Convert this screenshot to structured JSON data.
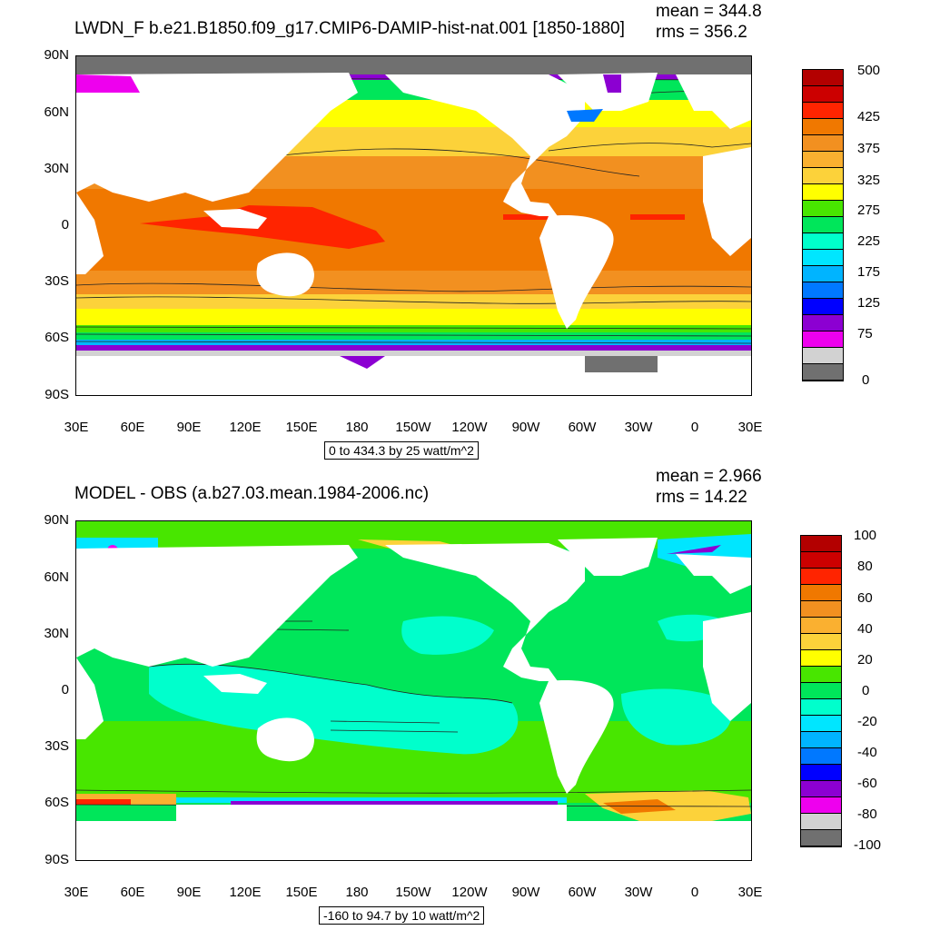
{
  "panels": [
    {
      "title": "LWDN_F b.e21.B1850.f09_g17.CMIP6-DAMIP-hist-nat.001 [1850-1880]",
      "mean_label": "mean = 344.8",
      "rms_label": "rms = 356.2",
      "range_label": "0 to 434.3 by 25 watt/m^2",
      "colorbar": {
        "colors": [
          "#b30000",
          "#cc0000",
          "#ff2400",
          "#f07800",
          "#f29020",
          "#fab030",
          "#fcd23a",
          "#ffff00",
          "#48e600",
          "#00e65a",
          "#00ffcc",
          "#00e6ff",
          "#00b4ff",
          "#0078ff",
          "#0000ff",
          "#8c00d2",
          "#ee00ee",
          "#d2d2d2",
          "#707070"
        ],
        "labels": [
          "500",
          "425",
          "375",
          "325",
          "275",
          "225",
          "175",
          "125",
          "75",
          "0"
        ]
      }
    },
    {
      "title": "MODEL - OBS (a.b27.03.mean.1984-2006.nc)",
      "mean_label": "mean = 2.966",
      "rms_label": "rms = 14.22",
      "range_label": "-160 to 94.7 by 10 watt/m^2",
      "colorbar": {
        "colors": [
          "#b30000",
          "#cc0000",
          "#ff2400",
          "#f07800",
          "#f29020",
          "#fab030",
          "#fcd23a",
          "#ffff00",
          "#48e600",
          "#00e65a",
          "#00ffcc",
          "#00e6ff",
          "#00b4ff",
          "#0078ff",
          "#0000ff",
          "#8c00d2",
          "#ee00ee",
          "#d2d2d2",
          "#707070"
        ],
        "labels": [
          "100",
          "80",
          "60",
          "40",
          "20",
          "0",
          "-20",
          "-40",
          "-60",
          "-80",
          "-100"
        ]
      }
    }
  ],
  "lat_labels": [
    "90N",
    "60N",
    "30N",
    "0",
    "30S",
    "60S",
    "90S"
  ],
  "lon_labels": [
    "30E",
    "60E",
    "90E",
    "120E",
    "150E",
    "180",
    "150W",
    "120W",
    "90W",
    "60W",
    "30W",
    "0",
    "30E"
  ]
}
